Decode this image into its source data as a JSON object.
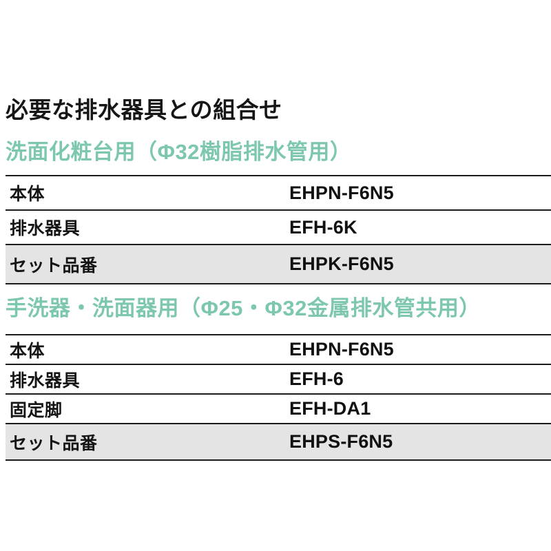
{
  "page": {
    "title": "必要な排水器具との組合せ"
  },
  "colors": {
    "heading_teal": "#7cc7ad",
    "highlight_row_gray": "#e4e4e4",
    "rule_border": "#1c1c1c",
    "text": "#151515"
  },
  "sections": [
    {
      "heading": "洗面化粧台用（Φ32樹脂排水管用）",
      "rows": [
        {
          "label": "本体",
          "value": "EHPN-F6N5",
          "highlight": false
        },
        {
          "label": "排水器具",
          "value": "EFH-6K",
          "highlight": false
        },
        {
          "label": "セット品番",
          "value": "EHPK-F6N5",
          "highlight": true
        }
      ]
    },
    {
      "heading": "手洗器・洗面器用（Φ25・Φ32金属排水管共用）",
      "rows": [
        {
          "label": "本体",
          "value": "EHPN-F6N5",
          "highlight": false
        },
        {
          "label": "排水器具",
          "value": "EFH-6",
          "highlight": false
        },
        {
          "label": "固定脚",
          "value": "EFH-DA1",
          "highlight": false
        },
        {
          "label": "セット品番",
          "value": "EHPS-F6N5",
          "highlight": true
        }
      ]
    }
  ]
}
